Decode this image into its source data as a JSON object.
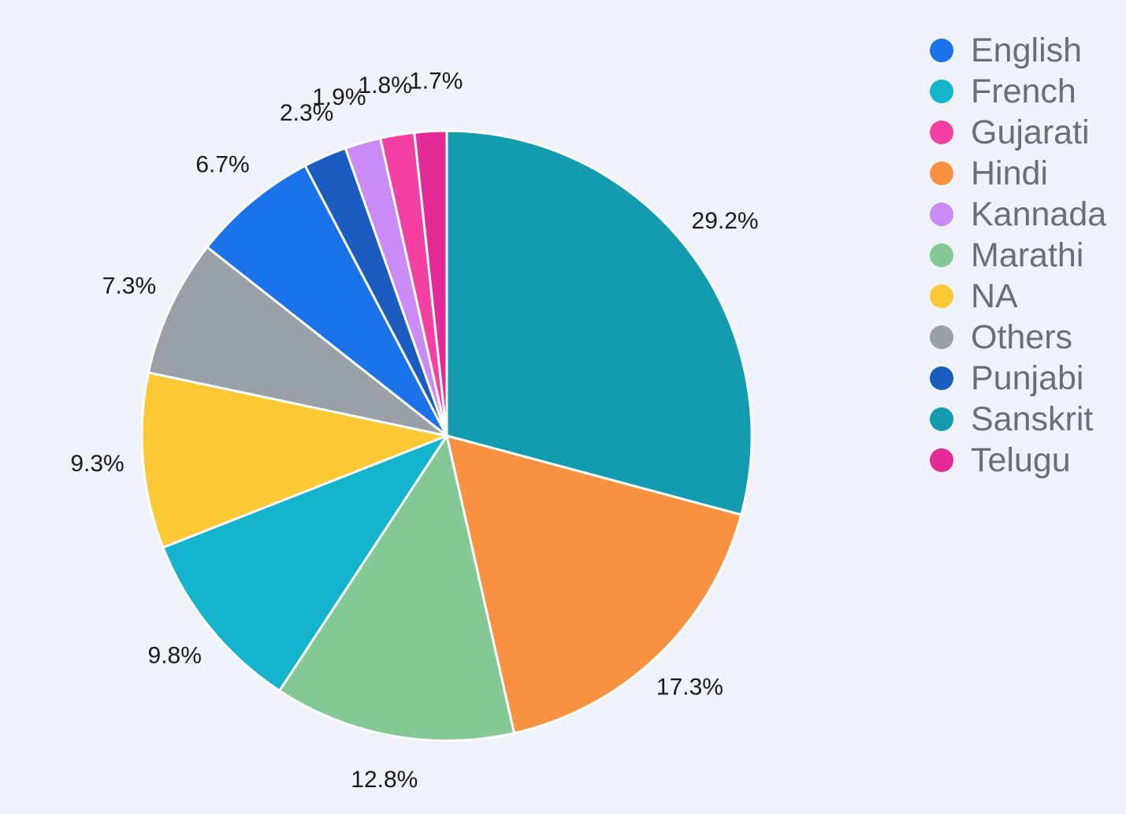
{
  "chart_data": {
    "type": "pie",
    "title": "",
    "legend_position": "top-right",
    "slices": [
      {
        "name": "Sanskrit",
        "value": 29.2,
        "label": "29.2%",
        "color": "#139cb0"
      },
      {
        "name": "Hindi",
        "value": 17.3,
        "label": "17.3%",
        "color": "#f99240"
      },
      {
        "name": "Marathi",
        "value": 12.8,
        "label": "12.8%",
        "color": "#84c995"
      },
      {
        "name": "French",
        "value": 9.8,
        "label": "9.8%",
        "color": "#14b4cc"
      },
      {
        "name": "NA",
        "value": 9.3,
        "label": "9.3%",
        "color": "#fcc833"
      },
      {
        "name": "Others",
        "value": 7.3,
        "label": "7.3%",
        "color": "#9aa0a7"
      },
      {
        "name": "English",
        "value": 6.7,
        "label": "6.7%",
        "color": "#1a73e8"
      },
      {
        "name": "Punjabi",
        "value": 2.3,
        "label": "2.3%",
        "color": "#1a5cbf"
      },
      {
        "name": "Kannada",
        "value": 1.9,
        "label": "1.9%",
        "color": "#c98cf7"
      },
      {
        "name": "Gujarati",
        "value": 1.8,
        "label": "1.8%",
        "color": "#f43fa3"
      },
      {
        "name": "Telugu",
        "value": 1.7,
        "label": "1.7%",
        "color": "#e32a97"
      }
    ],
    "legend": [
      {
        "name": "English",
        "color": "#1a73e8"
      },
      {
        "name": "French",
        "color": "#14b4cc"
      },
      {
        "name": "Gujarati",
        "color": "#f43fa3"
      },
      {
        "name": "Hindi",
        "color": "#f99240"
      },
      {
        "name": "Kannada",
        "color": "#c98cf7"
      },
      {
        "name": "Marathi",
        "color": "#84c995"
      },
      {
        "name": "NA",
        "color": "#fcc833"
      },
      {
        "name": "Others",
        "color": "#9aa0a7"
      },
      {
        "name": "Punjabi",
        "color": "#1a5cbf"
      },
      {
        "name": "Sanskrit",
        "color": "#139cb0"
      },
      {
        "name": "Telugu",
        "color": "#e32a97"
      }
    ]
  }
}
